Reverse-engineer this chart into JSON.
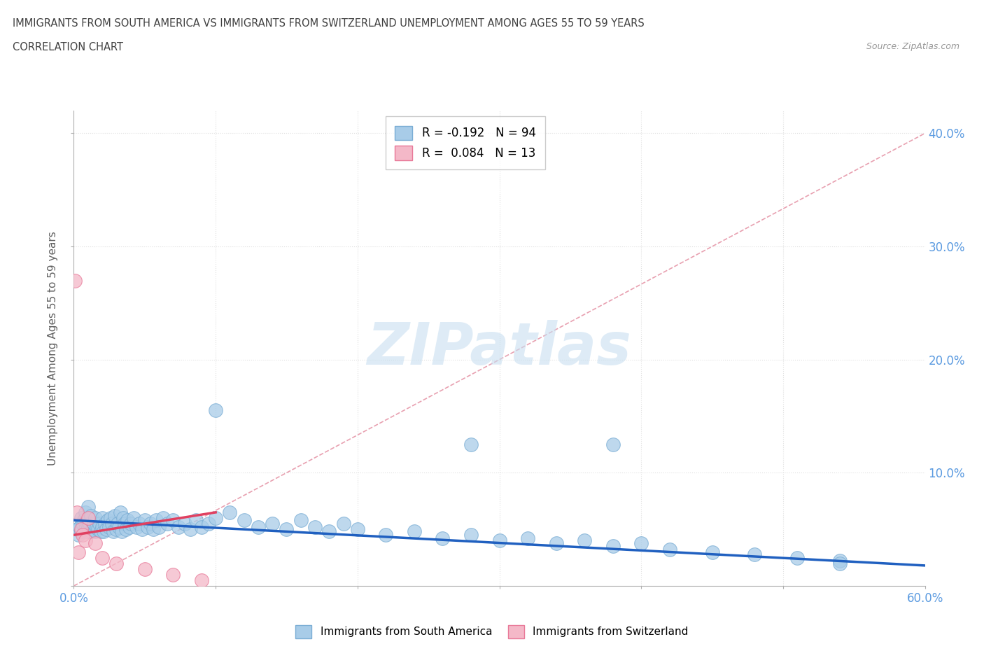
{
  "title_line1": "IMMIGRANTS FROM SOUTH AMERICA VS IMMIGRANTS FROM SWITZERLAND UNEMPLOYMENT AMONG AGES 55 TO 59 YEARS",
  "title_line2": "CORRELATION CHART",
  "source": "Source: ZipAtlas.com",
  "ylabel": "Unemployment Among Ages 55 to 59 years",
  "xlim": [
    0.0,
    0.6
  ],
  "ylim": [
    0.0,
    0.42
  ],
  "scatter_blue_color": "#a8cce8",
  "scatter_pink_color": "#f4b8c8",
  "scatter_blue_edge": "#7aadd4",
  "scatter_pink_edge": "#e87898",
  "line_blue_color": "#2060c0",
  "line_pink_color": "#e04060",
  "trendline_dash_color": "#e8a0b0",
  "watermark_color": "#c8dff0",
  "background_color": "#ffffff",
  "grid_color": "#e0e0e0",
  "title_color": "#404040",
  "axis_label_color": "#606060",
  "tick_label_color": "#5a9ae0",
  "watermark": "ZIPatlas",
  "blue_x": [
    0.002,
    0.003,
    0.004,
    0.005,
    0.005,
    0.006,
    0.007,
    0.008,
    0.008,
    0.009,
    0.01,
    0.01,
    0.011,
    0.012,
    0.012,
    0.013,
    0.014,
    0.015,
    0.015,
    0.016,
    0.017,
    0.018,
    0.019,
    0.02,
    0.02,
    0.021,
    0.022,
    0.023,
    0.024,
    0.025,
    0.026,
    0.027,
    0.028,
    0.029,
    0.03,
    0.031,
    0.032,
    0.033,
    0.034,
    0.035,
    0.036,
    0.037,
    0.038,
    0.039,
    0.04,
    0.042,
    0.044,
    0.046,
    0.048,
    0.05,
    0.052,
    0.054,
    0.056,
    0.058,
    0.06,
    0.063,
    0.066,
    0.07,
    0.074,
    0.078,
    0.082,
    0.086,
    0.09,
    0.095,
    0.1,
    0.11,
    0.12,
    0.13,
    0.14,
    0.15,
    0.16,
    0.17,
    0.18,
    0.19,
    0.2,
    0.22,
    0.24,
    0.26,
    0.28,
    0.3,
    0.32,
    0.34,
    0.36,
    0.38,
    0.4,
    0.42,
    0.45,
    0.48,
    0.51,
    0.54,
    0.1,
    0.28,
    0.38,
    0.54
  ],
  "blue_y": [
    0.05,
    0.045,
    0.052,
    0.048,
    0.06,
    0.055,
    0.058,
    0.05,
    0.065,
    0.048,
    0.052,
    0.07,
    0.055,
    0.048,
    0.062,
    0.05,
    0.055,
    0.06,
    0.048,
    0.052,
    0.05,
    0.055,
    0.048,
    0.06,
    0.052,
    0.048,
    0.055,
    0.05,
    0.058,
    0.052,
    0.06,
    0.055,
    0.048,
    0.062,
    0.05,
    0.055,
    0.052,
    0.065,
    0.048,
    0.06,
    0.055,
    0.05,
    0.058,
    0.052,
    0.055,
    0.06,
    0.052,
    0.055,
    0.05,
    0.058,
    0.052,
    0.055,
    0.05,
    0.058,
    0.052,
    0.06,
    0.055,
    0.058,
    0.052,
    0.055,
    0.05,
    0.058,
    0.052,
    0.055,
    0.06,
    0.065,
    0.058,
    0.052,
    0.055,
    0.05,
    0.058,
    0.052,
    0.048,
    0.055,
    0.05,
    0.045,
    0.048,
    0.042,
    0.045,
    0.04,
    0.042,
    0.038,
    0.04,
    0.035,
    0.038,
    0.032,
    0.03,
    0.028,
    0.025,
    0.022,
    0.155,
    0.125,
    0.125,
    0.02
  ],
  "pink_x": [
    0.001,
    0.002,
    0.003,
    0.005,
    0.006,
    0.008,
    0.01,
    0.015,
    0.02,
    0.03,
    0.05,
    0.07,
    0.09
  ],
  "pink_y": [
    0.27,
    0.065,
    0.03,
    0.05,
    0.045,
    0.04,
    0.06,
    0.038,
    0.025,
    0.02,
    0.015,
    0.01,
    0.005
  ],
  "blue_line_x": [
    0.0,
    0.6
  ],
  "blue_line_y": [
    0.058,
    0.018
  ],
  "pink_line_x": [
    0.0,
    0.1
  ],
  "pink_line_y": [
    0.045,
    0.065
  ],
  "dash_line_x": [
    0.0,
    0.6
  ],
  "dash_line_y": [
    0.0,
    0.4
  ]
}
